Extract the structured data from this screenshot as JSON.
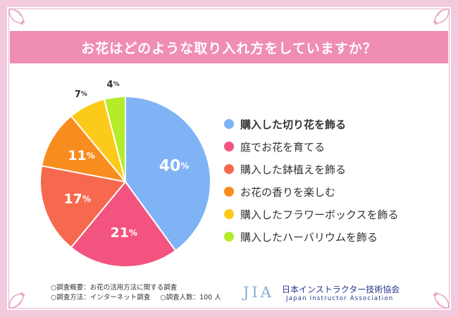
{
  "title": "お花はどのような取り入れ方をしていますか？",
  "chart_data": {
    "type": "pie",
    "title": "お花はどのような取り入れ方をしていますか？",
    "slices": [
      {
        "label": "購入した切り花を飾る",
        "value": 40,
        "color": "#7fb3f5",
        "display": "40",
        "unit": "%",
        "bold": true
      },
      {
        "label": "庭でお花を育てる",
        "value": 21,
        "color": "#f2547f",
        "display": "21",
        "unit": "%",
        "bold": false
      },
      {
        "label": "購入した鉢植えを飾る",
        "value": 17,
        "color": "#f7694e",
        "display": "17",
        "unit": "%",
        "bold": false
      },
      {
        "label": "お花の香りを楽しむ",
        "value": 11,
        "color": "#f98c1e",
        "display": "11",
        "unit": "%",
        "bold": false
      },
      {
        "label": "購入したフラワーボックスを飾る",
        "value": 7,
        "color": "#fcca1a",
        "display": "7",
        "unit": "%",
        "bold": false
      },
      {
        "label": "購入したハーバリウムを飾る",
        "value": 4,
        "color": "#b4ec2b",
        "display": "4",
        "unit": "%",
        "bold": false
      }
    ]
  },
  "notes": {
    "line1": "○調査概要：お花の活用方法に関する調査",
    "line2a": "○調査方法：インターネット調査",
    "line2b": "○調査人数：100 人"
  },
  "logo": {
    "mark": "JIA",
    "name": "日本インストラクター技術協会",
    "english": "Japan Instructor Association",
    "color": "#26348b"
  }
}
